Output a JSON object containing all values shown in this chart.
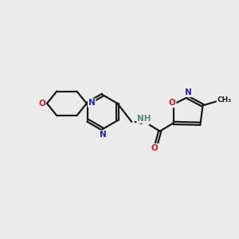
{
  "background_color": "#ebebeb",
  "bond_color": "#1a1a1a",
  "N_color": "#2222bb",
  "O_color": "#cc2020",
  "NH_color": "#4a8888",
  "lw": 1.6,
  "dbo": 0.055,
  "fig_w": 3.0,
  "fig_h": 3.0,
  "dpi": 100,
  "xlim": [
    0,
    10
  ],
  "ylim": [
    2,
    8
  ]
}
